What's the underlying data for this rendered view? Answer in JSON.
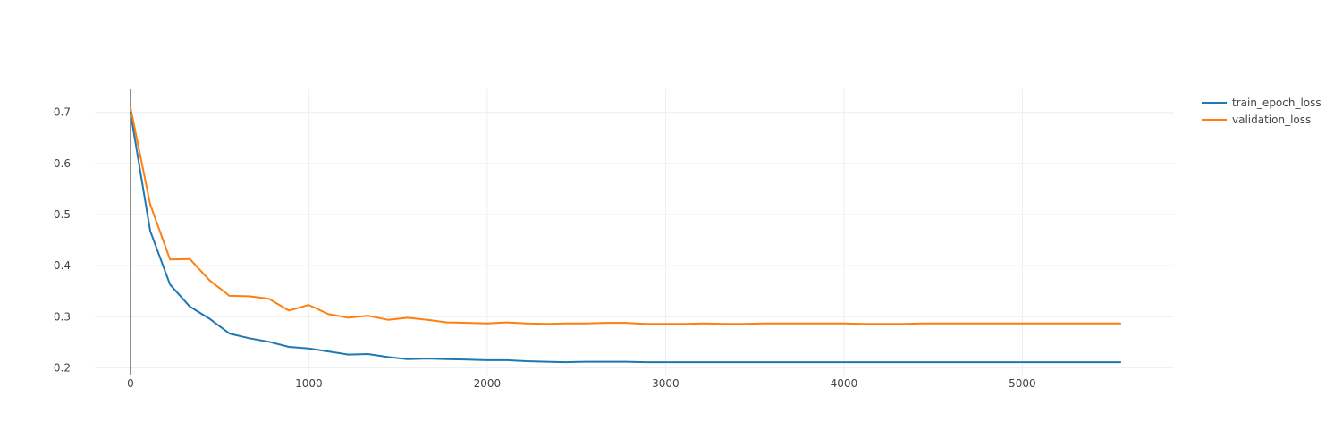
{
  "chart_data": {
    "type": "line",
    "title": "",
    "xlabel": "",
    "ylabel": "",
    "xlim": [
      -200,
      5850
    ],
    "ylim": [
      0.185,
      0.745
    ],
    "x_ticks": [
      0,
      1000,
      2000,
      3000,
      4000,
      5000
    ],
    "x_tick_labels": [
      "0",
      "1000",
      "2000",
      "3000",
      "4000",
      "5000"
    ],
    "y_ticks": [
      0.2,
      0.3,
      0.4,
      0.5,
      0.6,
      0.7
    ],
    "y_tick_labels": [
      "0.2",
      "0.3",
      "0.4",
      "0.5",
      "0.6",
      "0.7"
    ],
    "grid": true,
    "legend_position": "top-right",
    "series": [
      {
        "name": "train_epoch_loss",
        "color": "#1f77b4",
        "x": [
          0,
          111,
          222,
          333,
          444,
          555,
          666,
          777,
          888,
          999,
          1110,
          1221,
          1332,
          1443,
          1554,
          1665,
          1776,
          1887,
          1998,
          2109,
          2220,
          2331,
          2442,
          2553,
          2664,
          2775,
          2886,
          2997,
          3108,
          3219,
          3330,
          3441,
          3552,
          3663,
          3774,
          3885,
          3996,
          4107,
          4218,
          4329,
          4440,
          4551,
          4662,
          4773,
          4884,
          4995,
          5106,
          5217,
          5328,
          5439,
          5550
        ],
        "y": [
          0.7,
          0.468,
          0.363,
          0.32,
          0.296,
          0.267,
          0.258,
          0.251,
          0.241,
          0.238,
          0.232,
          0.226,
          0.227,
          0.221,
          0.217,
          0.218,
          0.217,
          0.216,
          0.215,
          0.215,
          0.213,
          0.212,
          0.211,
          0.212,
          0.212,
          0.212,
          0.211,
          0.211,
          0.211,
          0.211,
          0.211,
          0.211,
          0.211,
          0.211,
          0.211,
          0.211,
          0.211,
          0.211,
          0.211,
          0.211,
          0.211,
          0.211,
          0.211,
          0.211,
          0.211,
          0.211,
          0.211,
          0.211,
          0.211,
          0.211,
          0.211
        ]
      },
      {
        "name": "validation_loss",
        "color": "#ff7f0e",
        "x": [
          0,
          111,
          222,
          333,
          444,
          555,
          666,
          777,
          888,
          999,
          1110,
          1221,
          1332,
          1443,
          1554,
          1665,
          1776,
          1887,
          1998,
          2109,
          2220,
          2331,
          2442,
          2553,
          2664,
          2775,
          2886,
          2997,
          3108,
          3219,
          3330,
          3441,
          3552,
          3663,
          3774,
          3885,
          3996,
          4107,
          4218,
          4329,
          4440,
          4551,
          4662,
          4773,
          4884,
          4995,
          5106,
          5217,
          5328,
          5439,
          5550
        ],
        "y": [
          0.71,
          0.52,
          0.412,
          0.413,
          0.371,
          0.341,
          0.34,
          0.335,
          0.312,
          0.323,
          0.305,
          0.298,
          0.302,
          0.294,
          0.298,
          0.294,
          0.289,
          0.288,
          0.287,
          0.289,
          0.287,
          0.286,
          0.287,
          0.287,
          0.288,
          0.288,
          0.286,
          0.286,
          0.286,
          0.287,
          0.286,
          0.286,
          0.287,
          0.287,
          0.287,
          0.287,
          0.287,
          0.286,
          0.286,
          0.286,
          0.287,
          0.287,
          0.287,
          0.287,
          0.287,
          0.287,
          0.287,
          0.287,
          0.287,
          0.287,
          0.287
        ]
      }
    ]
  }
}
